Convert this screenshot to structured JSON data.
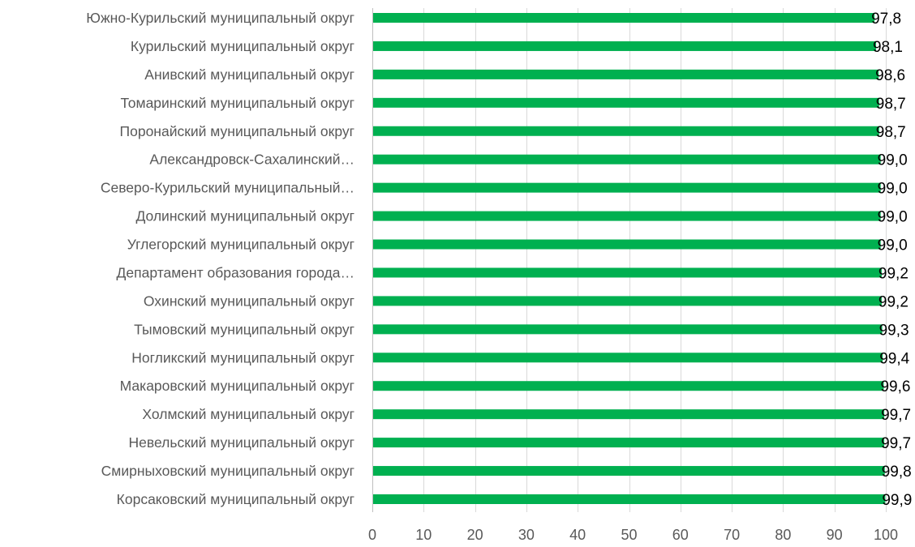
{
  "chart_data": {
    "type": "bar",
    "orientation": "horizontal",
    "categories": [
      "Южно-Курильский муниципальный округ",
      "Курильский муниципальный округ",
      "Анивский муниципальный округ",
      "Томаринский муниципальный округ",
      "Поронайский муниципальный округ",
      "Александровск-Сахалинский…",
      "Северо-Курильский муниципальный…",
      "Долинский муниципальный округ",
      "Углегорский муниципальный округ",
      "Департамент образования города…",
      "Охинский муниципальный округ",
      "Тымовский муниципальный округ",
      "Ногликский муниципальный округ",
      "Макаровский муниципальный округ",
      "Холмский муниципальный округ",
      "Невельский муниципальный округ",
      "Смирныховский муниципальный округ",
      "Корсаковский муниципальный округ"
    ],
    "values": [
      97.8,
      98.1,
      98.6,
      98.7,
      98.7,
      99.0,
      99.0,
      99.0,
      99.0,
      99.2,
      99.2,
      99.3,
      99.4,
      99.6,
      99.7,
      99.7,
      99.8,
      99.9
    ],
    "value_labels": [
      "97,8",
      "98,1",
      "98,6",
      "98,7",
      "98,7",
      "99,0",
      "99,0",
      "99,0",
      "99,0",
      "99,2",
      "99,2",
      "99,3",
      "99,4",
      "99,6",
      "99,7",
      "99,7",
      "99,8",
      "99,9"
    ],
    "xlim": [
      0,
      100
    ],
    "xticks": [
      "0",
      "10",
      "20",
      "30",
      "40",
      "50",
      "60",
      "70",
      "80",
      "90",
      "100"
    ],
    "title": "",
    "xlabel": "",
    "ylabel": "",
    "grid": "vertical",
    "legend": "none",
    "bar_color": "#00b050"
  }
}
